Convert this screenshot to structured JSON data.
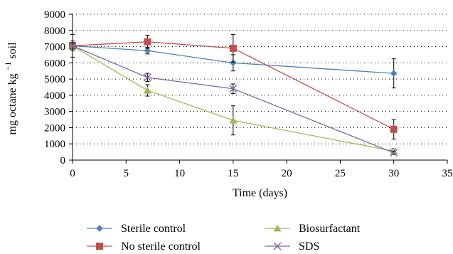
{
  "chart_data": {
    "type": "line",
    "xlabel": "Time (days)",
    "ylabel": {
      "main": "mg octane kg",
      "superscript": "−1",
      "tail": " soil"
    },
    "xlim": [
      0,
      35
    ],
    "ylim": [
      0,
      9000
    ],
    "xticks": [
      "0",
      "5",
      "10",
      "15",
      "20",
      "25",
      "30",
      "35"
    ],
    "yticks": [
      "0",
      "1000",
      "2000",
      "3000",
      "4000",
      "5000",
      "6000",
      "7000",
      "8000",
      "9000"
    ],
    "grid": "horizontal dotted",
    "legend_position": "bottom",
    "x": [
      0,
      7,
      15,
      30
    ],
    "series": [
      {
        "name": "Sterile control",
        "color": "#4F81BD",
        "marker": "diamond",
        "values": [
          7050,
          6750,
          6000,
          5350
        ],
        "errors": [
          300,
          200,
          500,
          900
        ]
      },
      {
        "name": "No sterile control",
        "color": "#C0504D",
        "marker": "square",
        "values": [
          7050,
          7300,
          6900,
          1900
        ],
        "errors": [
          700,
          400,
          850,
          600
        ]
      },
      {
        "name": "Biosurfactant",
        "color": "#9BBB59",
        "marker": "triangle",
        "values": [
          7050,
          4300,
          2450,
          550
        ],
        "errors": [
          200,
          350,
          900,
          150
        ]
      },
      {
        "name": "SDS",
        "color": "#8064A2",
        "marker": "x",
        "values": [
          7050,
          5100,
          4400,
          450
        ],
        "errors": [
          200,
          250,
          300,
          100
        ]
      }
    ]
  }
}
